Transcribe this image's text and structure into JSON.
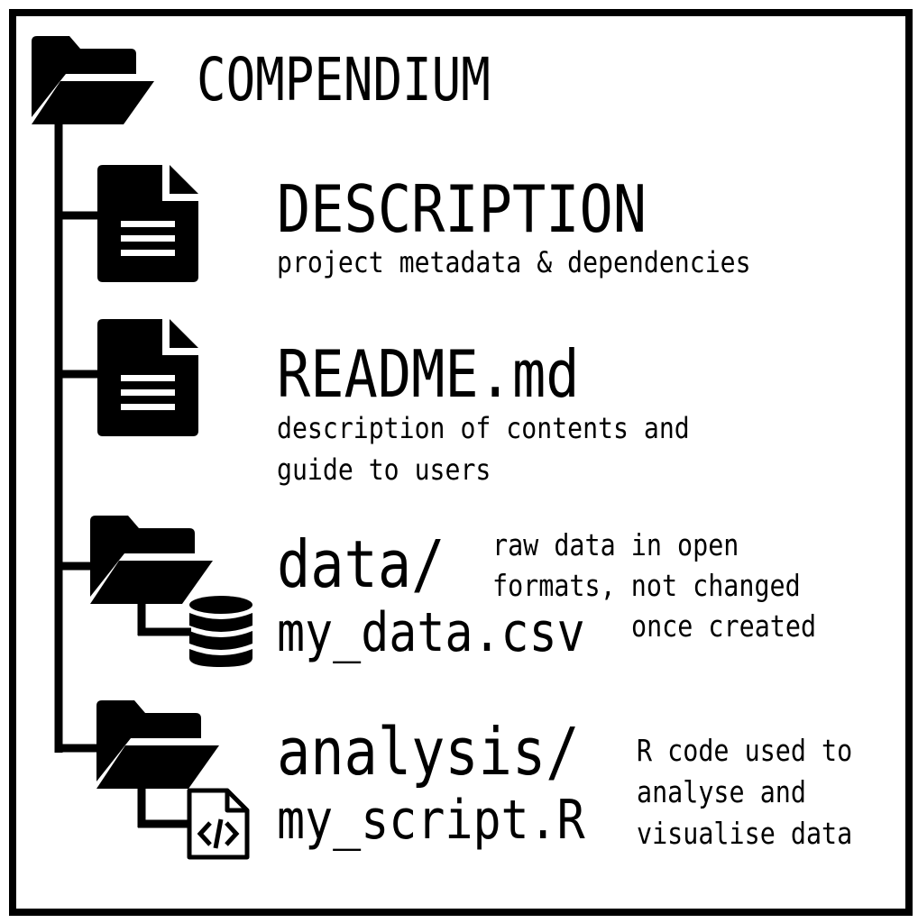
{
  "root": {
    "label": "COMPENDIUM",
    "icon": "folder-open-icon"
  },
  "items": [
    {
      "name": "DESCRIPTION",
      "desc": "project metadata & dependencies",
      "icon": "file-icon"
    },
    {
      "name": "README.md",
      "desc_lines": [
        "description of contents and",
        "guide to users"
      ],
      "icon": "file-icon"
    },
    {
      "name": "data/",
      "child": "my_data.csv",
      "note_lines": [
        "raw data in open",
        "formats, not changed",
        "once created"
      ],
      "icon": "folder-open-icon",
      "child_icon": "database-icon"
    },
    {
      "name": "analysis/",
      "child": "my_script.R",
      "note_lines": [
        "R code used to",
        "analyse and",
        "visualise data"
      ],
      "icon": "folder-open-icon",
      "child_icon": "code-file-icon"
    }
  ],
  "colors": {
    "ink": "#000000",
    "background": "#ffffff"
  }
}
